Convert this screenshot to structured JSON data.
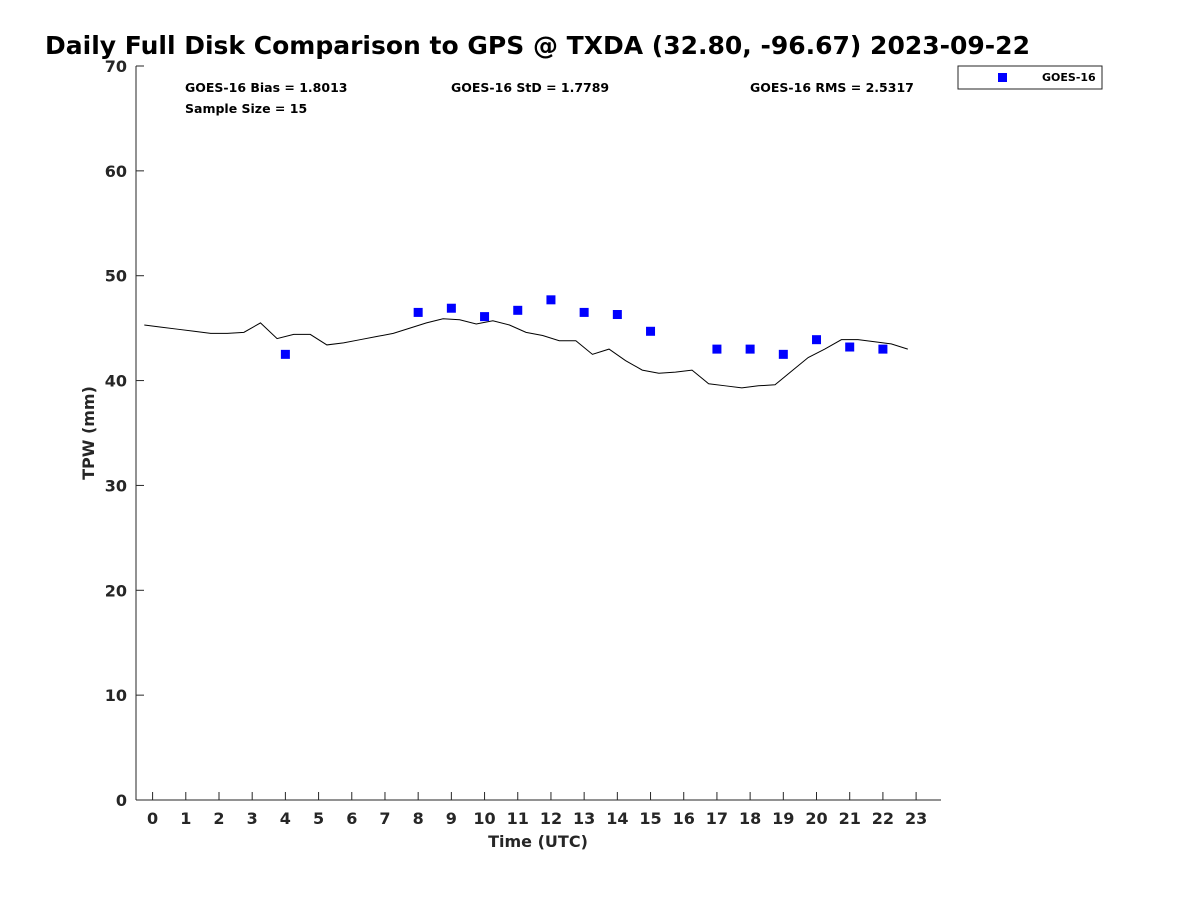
{
  "chart_data": {
    "type": "scatter",
    "title": "Daily Full Disk Comparison to GPS @ TXDA (32.80, -96.67) 2023-09-22",
    "xlabel": "Time (UTC)",
    "ylabel": "TPW (mm)",
    "xlim": [
      -0.5,
      23.75
    ],
    "ylim": [
      0,
      70
    ],
    "x_ticks": [
      0,
      1,
      2,
      3,
      4,
      5,
      6,
      7,
      8,
      9,
      10,
      11,
      12,
      13,
      14,
      15,
      16,
      17,
      18,
      19,
      20,
      21,
      22,
      23
    ],
    "y_ticks": [
      0,
      10,
      20,
      30,
      40,
      50,
      60,
      70
    ],
    "grid": false,
    "legend_position": "top-right",
    "stats": {
      "bias": "GOES-16 Bias = 1.8013",
      "std": "GOES-16 StD = 1.7789",
      "rms": "GOES-16 RMS = 2.5317",
      "sample_size": "Sample Size = 15"
    },
    "series": [
      {
        "name": "GOES-16",
        "type": "scatter",
        "marker": "square",
        "color": "#0000ff",
        "x": [
          4,
          8,
          9,
          10,
          11,
          12,
          13,
          14,
          15,
          17,
          18,
          19,
          20,
          21,
          22
        ],
        "y": [
          42.5,
          46.5,
          46.9,
          46.1,
          46.7,
          47.7,
          46.5,
          46.3,
          44.7,
          43.0,
          43.0,
          42.5,
          43.9,
          43.2,
          43.0
        ]
      },
      {
        "type": "line",
        "color": "#000000",
        "x": [
          -0.25,
          0.25,
          0.75,
          1.25,
          1.75,
          2.25,
          2.75,
          3.25,
          3.75,
          4.25,
          4.75,
          5.25,
          5.75,
          6.25,
          6.75,
          7.25,
          7.75,
          8.25,
          8.75,
          9.25,
          9.75,
          10.25,
          10.75,
          11.25,
          11.75,
          12.25,
          12.75,
          13.25,
          13.75,
          14.25,
          14.75,
          15.25,
          15.75,
          16.25,
          16.75,
          17.25,
          17.75,
          18.25,
          18.75,
          19.25,
          19.75,
          20.25,
          20.75,
          21.25,
          21.75,
          22.25,
          22.75
        ],
        "y": [
          45.3,
          45.1,
          44.9,
          44.7,
          44.5,
          44.5,
          44.6,
          45.5,
          44.0,
          44.4,
          44.4,
          43.4,
          43.6,
          43.9,
          44.2,
          44.5,
          45.0,
          45.5,
          45.9,
          45.8,
          45.4,
          45.7,
          45.3,
          44.6,
          44.3,
          43.8,
          43.8,
          42.5,
          43.0,
          41.9,
          41.0,
          40.7,
          40.8,
          41.0,
          39.7,
          39.5,
          39.3,
          39.5,
          39.6,
          40.9,
          42.2,
          43.0,
          43.9,
          43.9,
          43.7,
          43.5,
          43.0
        ]
      }
    ]
  }
}
